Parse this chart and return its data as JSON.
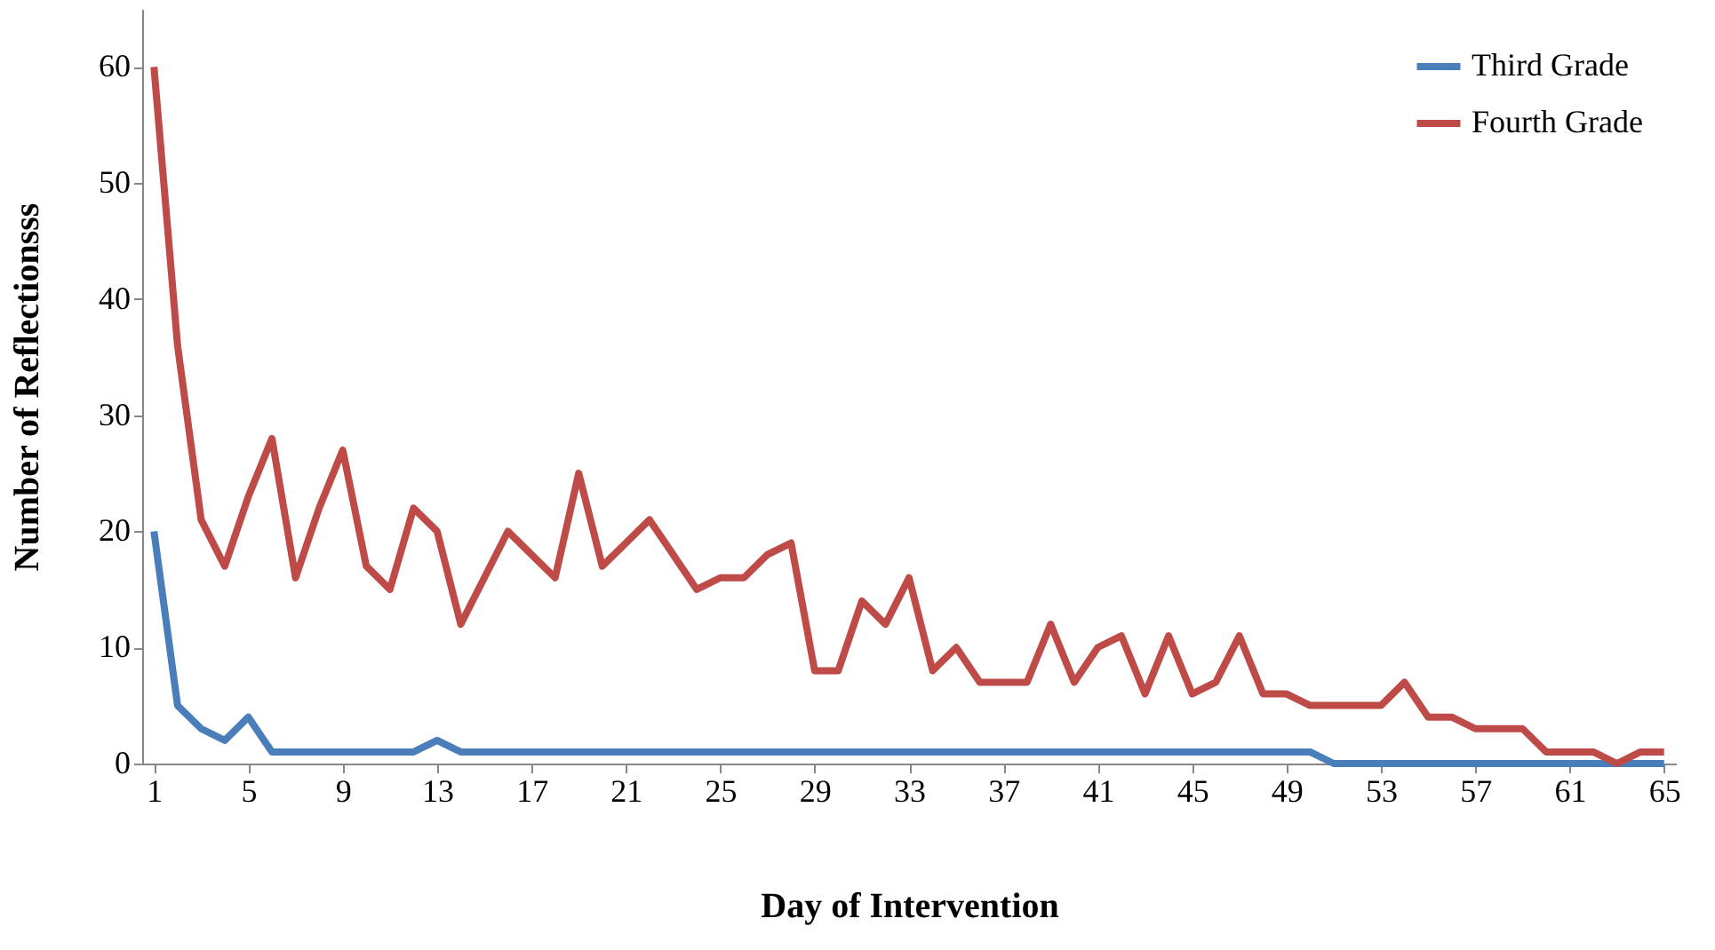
{
  "chart_data": {
    "type": "line",
    "xlabel": "Day of Intervention",
    "ylabel": "Number of Reflectionsss",
    "categories": [
      "1",
      null,
      null,
      null,
      "5",
      null,
      null,
      null,
      "9",
      null,
      null,
      null,
      "13",
      null,
      null,
      null,
      "17",
      null,
      null,
      null,
      "21",
      null,
      null,
      null,
      "25",
      null,
      null,
      null,
      "29",
      null,
      null,
      null,
      "33",
      null,
      null,
      null,
      "37",
      null,
      null,
      null,
      "41",
      null,
      null,
      null,
      "45",
      null,
      null,
      null,
      "49",
      null,
      null,
      null,
      "53",
      null,
      null,
      null,
      "57",
      null,
      null,
      null,
      "61",
      null,
      null,
      null,
      "65"
    ],
    "series": [
      {
        "name": "Third Grade",
        "color": "#4a7ebb",
        "values": [
          20,
          5,
          3,
          2,
          4,
          1,
          1,
          1,
          1,
          1,
          1,
          1,
          2,
          1,
          1,
          1,
          1,
          1,
          1,
          1,
          1,
          1,
          1,
          1,
          1,
          1,
          1,
          1,
          1,
          1,
          1,
          1,
          1,
          1,
          1,
          1,
          1,
          1,
          1,
          1,
          1,
          1,
          1,
          1,
          1,
          1,
          1,
          1,
          1,
          1,
          0,
          0,
          0,
          0,
          0,
          0,
          0,
          0,
          0,
          0,
          0,
          0,
          0,
          0,
          0
        ]
      },
      {
        "name": "Fourth Grade",
        "color": "#be4b48",
        "values": [
          60,
          36,
          21,
          17,
          23,
          28,
          16,
          22,
          27,
          17,
          15,
          22,
          20,
          12,
          16,
          20,
          18,
          16,
          25,
          17,
          19,
          21,
          18,
          15,
          16,
          16,
          18,
          19,
          8,
          8,
          14,
          12,
          16,
          8,
          10,
          7,
          7,
          7,
          12,
          7,
          10,
          11,
          6,
          11,
          6,
          7,
          11,
          6,
          6,
          5,
          5,
          5,
          5,
          7,
          4,
          4,
          3,
          3,
          3,
          1,
          1,
          1,
          0,
          1,
          1
        ]
      }
    ],
    "ylim": [
      0,
      65
    ],
    "yticks": [
      0,
      10,
      20,
      30,
      40,
      50,
      60
    ],
    "grid": false,
    "legend": "top right",
    "marker": "none",
    "line_style": "solid"
  }
}
